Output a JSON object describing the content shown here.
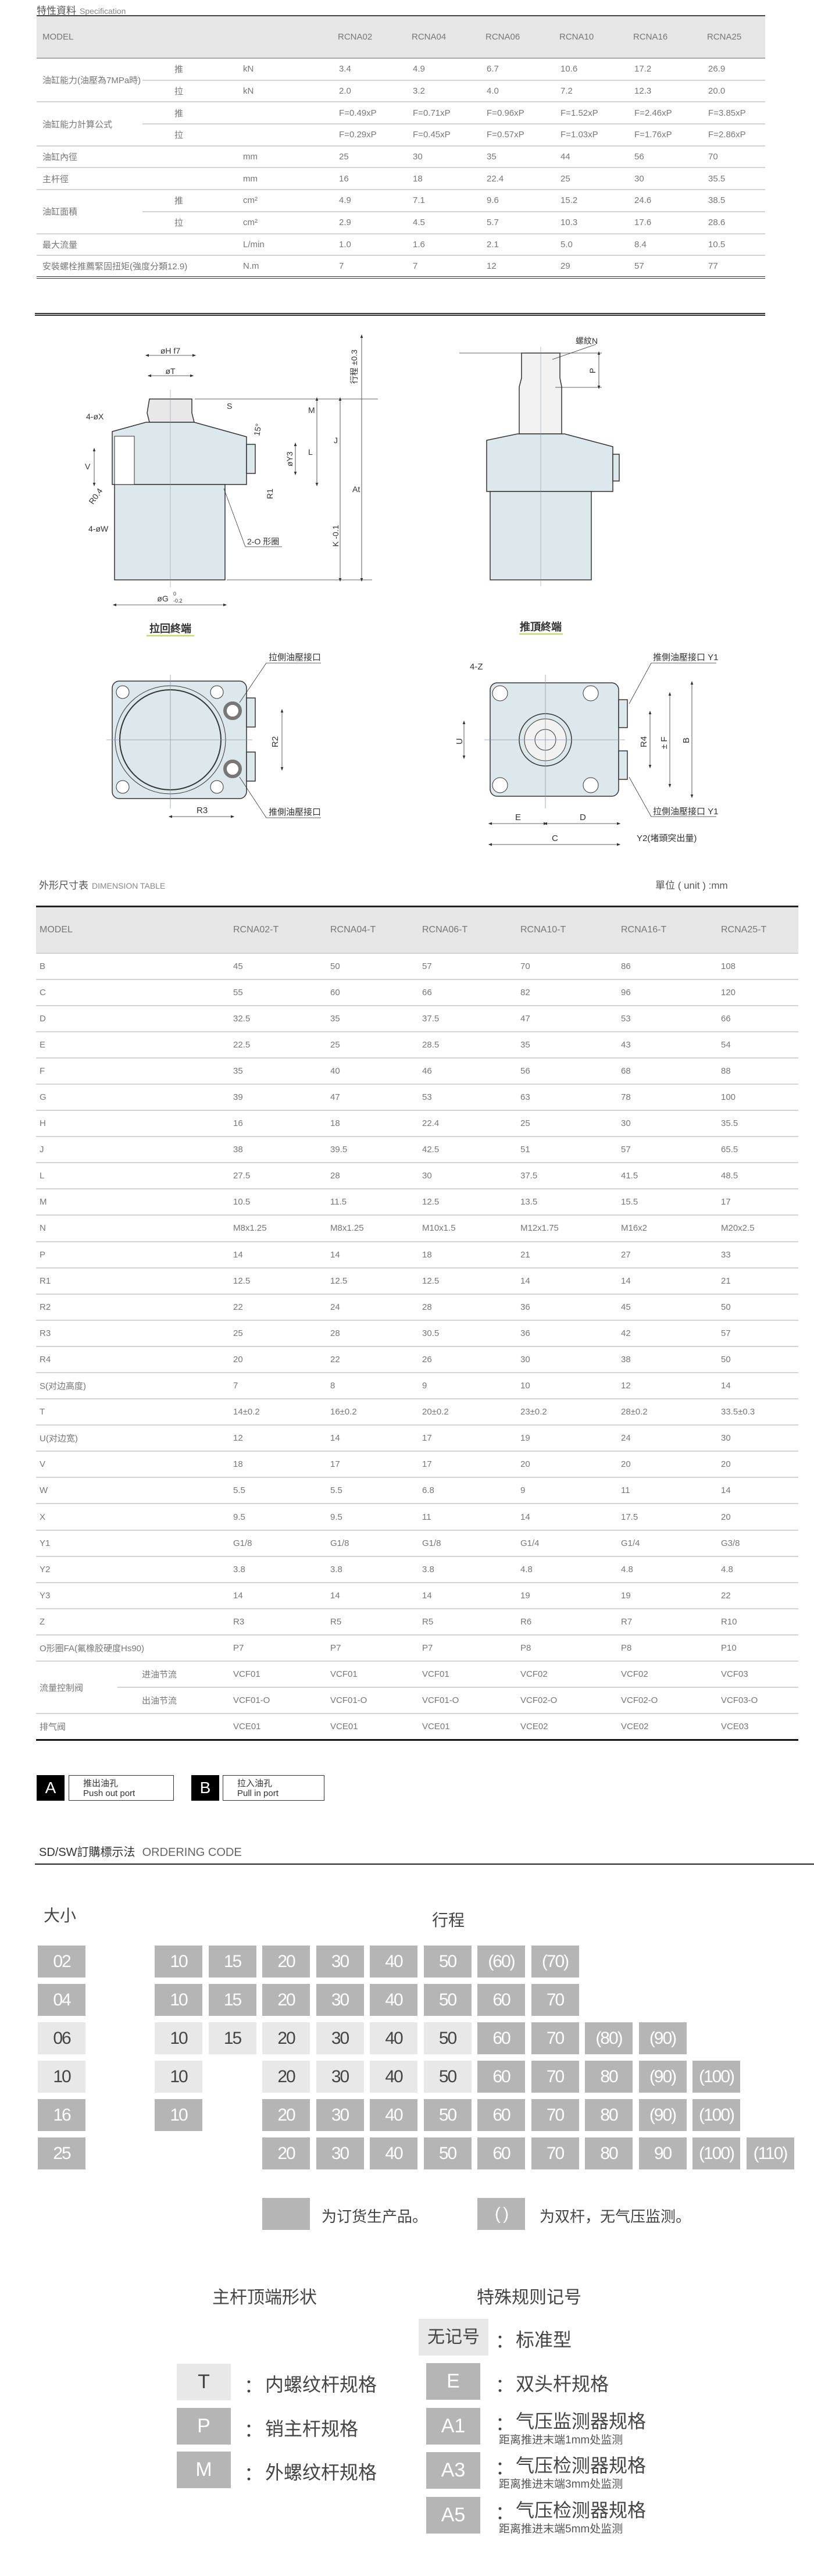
{
  "spec": {
    "title_cn": "特性資料",
    "title_en": "Specification",
    "header": [
      "MODEL",
      "RCNA02",
      "RCNA04",
      "RCNA06",
      "RCNA10",
      "RCNA16",
      "RCNA25"
    ],
    "rows": [
      {
        "label": "油缸能力(油壓為7MPa時)",
        "sub": "推",
        "unit": "kN",
        "values": [
          "3.4",
          "4.9",
          "6.7",
          "10.6",
          "17.2",
          "26.9"
        ]
      },
      {
        "sub": "拉",
        "unit": "kN",
        "values": [
          "2.0",
          "3.2",
          "4.0",
          "7.2",
          "12.3",
          "20.0"
        ]
      },
      {
        "label": "油缸能力計算公式",
        "sub": "推",
        "unit": "",
        "values": [
          "F=0.49xP",
          "F=0.71xP",
          "F=0.96xP",
          "F=1.52xP",
          "F=2.46xP",
          "F=3.85xP"
        ]
      },
      {
        "sub": "拉",
        "unit": "",
        "values": [
          "F=0.29xP",
          "F=0.45xP",
          "F=0.57xP",
          "F=1.03xP",
          "F=1.76xP",
          "F=2.86xP"
        ]
      },
      {
        "label": "油缸內徑",
        "unit": "mm",
        "values": [
          "25",
          "30",
          "35",
          "44",
          "56",
          "70"
        ]
      },
      {
        "label": "主杆徑",
        "unit": "mm",
        "values": [
          "16",
          "18",
          "22.4",
          "25",
          "30",
          "35.5"
        ]
      },
      {
        "label": "油缸面積",
        "sub": "推",
        "unit": "cm²",
        "values": [
          "4.9",
          "7.1",
          "9.6",
          "15.2",
          "24.6",
          "38.5"
        ]
      },
      {
        "sub": "拉",
        "unit": "cm²",
        "values": [
          "2.9",
          "4.5",
          "5.7",
          "10.3",
          "17.6",
          "28.6"
        ]
      },
      {
        "label": "最大流量",
        "unit": "L/min",
        "values": [
          "1.0",
          "1.6",
          "2.1",
          "5.0",
          "8.4",
          "10.5"
        ]
      },
      {
        "label": "安裝螺栓推薦緊固扭矩(強度分類12.9)",
        "unit": "N.m",
        "values": [
          "7",
          "7",
          "12",
          "29",
          "57",
          "77"
        ]
      }
    ]
  },
  "drawings": {
    "side_pull": {
      "hf7": "øH f7",
      "t": "øT",
      "s": "S",
      "m": "M",
      "j": "J",
      "l": "L",
      "stroke": "行程 ±0.3",
      "at": "At",
      "k": "K -0.1",
      "x4": "4-øX",
      "v": "V",
      "r04": "R0.4",
      "y3": "øY3",
      "deg": "15°",
      "r1": "R1",
      "oring": "2-O 形圈",
      "w4": "4-øW",
      "g": "øG",
      "g_tol_up": "0",
      "g_tol_dn": "-0.2",
      "caption": "拉回終端"
    },
    "side_push": {
      "n": "螺紋N",
      "p": "P",
      "caption": "推頂終端"
    },
    "bottom_left": {
      "pull_port": "拉側油壓接口",
      "push_port": "推側油壓接口",
      "r2": "R2",
      "r3": "R3"
    },
    "bottom_right": {
      "z4": "4-Z",
      "push_port": "推側油壓接口 Y1",
      "pull_port": "拉側油壓接口 Y1",
      "u": "U",
      "r4": "R4",
      "f": "± F",
      "b": "B",
      "e": "E",
      "d": "D",
      "c": "C",
      "y2": "Y2(堵頭突出量)"
    }
  },
  "dim": {
    "title_cn": "外形尺寸表",
    "title_en": "DIMENSION TABLE",
    "unit": "單位 ( unit ) :mm",
    "header": [
      "MODEL",
      "RCNA02-T",
      "RCNA04-T",
      "RCNA06-T",
      "RCNA10-T",
      "RCNA16-T",
      "RCNA25-T"
    ],
    "rows": [
      {
        "label": "B",
        "values": [
          "45",
          "50",
          "57",
          "70",
          "86",
          "108"
        ]
      },
      {
        "label": "C",
        "values": [
          "55",
          "60",
          "66",
          "82",
          "96",
          "120"
        ]
      },
      {
        "label": "D",
        "values": [
          "32.5",
          "35",
          "37.5",
          "47",
          "53",
          "66"
        ]
      },
      {
        "label": "E",
        "values": [
          "22.5",
          "25",
          "28.5",
          "35",
          "43",
          "54"
        ]
      },
      {
        "label": "F",
        "values": [
          "35",
          "40",
          "46",
          "56",
          "68",
          "88"
        ]
      },
      {
        "label": "G",
        "values": [
          "39",
          "47",
          "53",
          "63",
          "78",
          "100"
        ]
      },
      {
        "label": "H",
        "values": [
          "16",
          "18",
          "22.4",
          "25",
          "30",
          "35.5"
        ]
      },
      {
        "label": "J",
        "values": [
          "38",
          "39.5",
          "42.5",
          "51",
          "57",
          "65.5"
        ]
      },
      {
        "label": "L",
        "values": [
          "27.5",
          "28",
          "30",
          "37.5",
          "41.5",
          "48.5"
        ]
      },
      {
        "label": "M",
        "values": [
          "10.5",
          "11.5",
          "12.5",
          "13.5",
          "15.5",
          "17"
        ]
      },
      {
        "label": "N",
        "values": [
          "M8x1.25",
          "M8x1.25",
          "M10x1.5",
          "M12x1.75",
          "M16x2",
          "M20x2.5"
        ]
      },
      {
        "label": "P",
        "values": [
          "14",
          "14",
          "18",
          "21",
          "27",
          "33"
        ]
      },
      {
        "label": "R1",
        "values": [
          "12.5",
          "12.5",
          "12.5",
          "14",
          "14",
          "21"
        ]
      },
      {
        "label": "R2",
        "values": [
          "22",
          "24",
          "28",
          "36",
          "45",
          "50"
        ]
      },
      {
        "label": "R3",
        "values": [
          "25",
          "28",
          "30.5",
          "36",
          "42",
          "57"
        ]
      },
      {
        "label": "R4",
        "values": [
          "20",
          "22",
          "26",
          "30",
          "38",
          "50"
        ]
      },
      {
        "label": "S(对边高度)",
        "values": [
          "7",
          "8",
          "9",
          "10",
          "12",
          "14"
        ]
      },
      {
        "label": "T",
        "values": [
          "14±0.2",
          "16±0.2",
          "20±0.2",
          "23±0.2",
          "28±0.2",
          "33.5±0.3"
        ]
      },
      {
        "label": "U(对边宽)",
        "values": [
          "12",
          "14",
          "17",
          "19",
          "24",
          "30"
        ]
      },
      {
        "label": "V",
        "values": [
          "18",
          "17",
          "17",
          "20",
          "20",
          "20"
        ]
      },
      {
        "label": "W",
        "values": [
          "5.5",
          "5.5",
          "6.8",
          "9",
          "11",
          "14"
        ]
      },
      {
        "label": "X",
        "values": [
          "9.5",
          "9.5",
          "11",
          "14",
          "17.5",
          "20"
        ]
      },
      {
        "label": "Y1",
        "values": [
          "G1/8",
          "G1/8",
          "G1/8",
          "G1/4",
          "G1/4",
          "G3/8"
        ]
      },
      {
        "label": "Y2",
        "values": [
          "3.8",
          "3.8",
          "3.8",
          "4.8",
          "4.8",
          "4.8"
        ]
      },
      {
        "label": "Y3",
        "values": [
          "14",
          "14",
          "14",
          "19",
          "19",
          "22"
        ]
      },
      {
        "label": "Z",
        "values": [
          "R3",
          "R5",
          "R5",
          "R6",
          "R7",
          "R10"
        ]
      },
      {
        "label": "O形圈FA(氟橡胶硬度Hs90)",
        "values": [
          "P7",
          "P7",
          "P7",
          "P8",
          "P8",
          "P10"
        ]
      },
      {
        "label": "流量控制阀",
        "sub": "进油节流",
        "values": [
          "VCF01",
          "VCF01",
          "VCF01",
          "VCF02",
          "VCF02",
          "VCF03"
        ]
      },
      {
        "sub": "出油节流",
        "values": [
          "VCF01-O",
          "VCF01-O",
          "VCF01-O",
          "VCF02-O",
          "VCF02-O",
          "VCF03-O"
        ]
      },
      {
        "label": "排气阀",
        "values": [
          "VCE01",
          "VCE01",
          "VCE01",
          "VCE02",
          "VCE02",
          "VCE03"
        ]
      }
    ]
  },
  "ports": {
    "a": {
      "key": "A",
      "cn": "推出油孔",
      "en": "Push out port"
    },
    "b": {
      "key": "B",
      "cn": "拉入油孔",
      "en": "Pull in port"
    }
  },
  "ordering": {
    "title_cn": "SD/SW訂購標示法",
    "title_en": "ORDERING CODE",
    "size_label": "大小",
    "stroke_label": "行程",
    "rows": [
      {
        "size": "02",
        "size_style": "d",
        "cells": [
          [
            "10",
            "d"
          ],
          [
            "15",
            "d"
          ],
          [
            "20",
            "d"
          ],
          [
            "30",
            "d"
          ],
          [
            "40",
            "d"
          ],
          [
            "50",
            "d"
          ],
          [
            "(60)",
            "d"
          ],
          [
            "(70)",
            "d"
          ],
          null,
          null,
          null,
          null
        ]
      },
      {
        "size": "04",
        "size_style": "d",
        "cells": [
          [
            "10",
            "d"
          ],
          [
            "15",
            "d"
          ],
          [
            "20",
            "d"
          ],
          [
            "30",
            "d"
          ],
          [
            "40",
            "d"
          ],
          [
            "50",
            "d"
          ],
          [
            "60",
            "d"
          ],
          [
            "70",
            "d"
          ],
          null,
          null,
          null,
          null
        ]
      },
      {
        "size": "06",
        "size_style": "l",
        "cells": [
          [
            "10",
            "l"
          ],
          [
            "15",
            "l"
          ],
          [
            "20",
            "l"
          ],
          [
            "30",
            "l"
          ],
          [
            "40",
            "l"
          ],
          [
            "50",
            "l"
          ],
          [
            "60",
            "d"
          ],
          [
            "70",
            "d"
          ],
          [
            "(80)",
            "d"
          ],
          [
            "(90)",
            "d"
          ],
          null,
          null
        ]
      },
      {
        "size": "10",
        "size_style": "l",
        "cells": [
          [
            "10",
            "l"
          ],
          null,
          [
            "20",
            "l"
          ],
          [
            "30",
            "l"
          ],
          [
            "40",
            "l"
          ],
          [
            "50",
            "l"
          ],
          [
            "60",
            "d"
          ],
          [
            "70",
            "d"
          ],
          [
            "80",
            "d"
          ],
          [
            "(90)",
            "d"
          ],
          [
            "(100)",
            "d"
          ],
          null
        ]
      },
      {
        "size": "16",
        "size_style": "d",
        "cells": [
          [
            "10",
            "d"
          ],
          null,
          [
            "20",
            "d"
          ],
          [
            "30",
            "d"
          ],
          [
            "40",
            "d"
          ],
          [
            "50",
            "d"
          ],
          [
            "60",
            "d"
          ],
          [
            "70",
            "d"
          ],
          [
            "80",
            "d"
          ],
          [
            "(90)",
            "d"
          ],
          [
            "(100)",
            "d"
          ],
          null
        ]
      },
      {
        "size": "25",
        "size_style": "d",
        "cells": [
          null,
          null,
          [
            "20",
            "d"
          ],
          [
            "30",
            "d"
          ],
          [
            "40",
            "d"
          ],
          [
            "50",
            "d"
          ],
          [
            "60",
            "d"
          ],
          [
            "70",
            "d"
          ],
          [
            "80",
            "d"
          ],
          [
            "90",
            "d"
          ],
          [
            "(100)",
            "d"
          ],
          [
            "(110)",
            "d"
          ]
        ]
      }
    ],
    "legend": [
      {
        "swatch": "",
        "text": "为订货生产品。"
      },
      {
        "swatch": "( )",
        "text": "为双杆，无气压监测。"
      }
    ],
    "rod_end": {
      "title": "主杆顶端形状",
      "items": [
        {
          "code": "T",
          "style": "l",
          "text": "内螺纹杆规格"
        },
        {
          "code": "P",
          "style": "d",
          "text": "销主杆规格"
        },
        {
          "code": "M",
          "style": "d",
          "text": "外螺纹杆规格"
        }
      ]
    },
    "special": {
      "title": "特殊规则记号",
      "none": {
        "code": "无记号",
        "text": "标准型"
      },
      "items": [
        {
          "code": "E",
          "text": "双头杆规格",
          "sub": ""
        },
        {
          "code": "A1",
          "text": "气压监测器规格",
          "sub": "距离推进末端1mm处监测"
        },
        {
          "code": "A3",
          "text": "气压检测器规格",
          "sub": "距离推进末端3mm处监测"
        },
        {
          "code": "A5",
          "text": "气压检测器规格",
          "sub": "距离推进末端5mm处监测"
        }
      ]
    },
    "colon": "："
  },
  "colors": {
    "dark_cell": "#b5b5b5",
    "light_cell": "#e8e8e8",
    "drawing_fill": "#dde8ec",
    "caption_underline": "#c8d86a"
  }
}
